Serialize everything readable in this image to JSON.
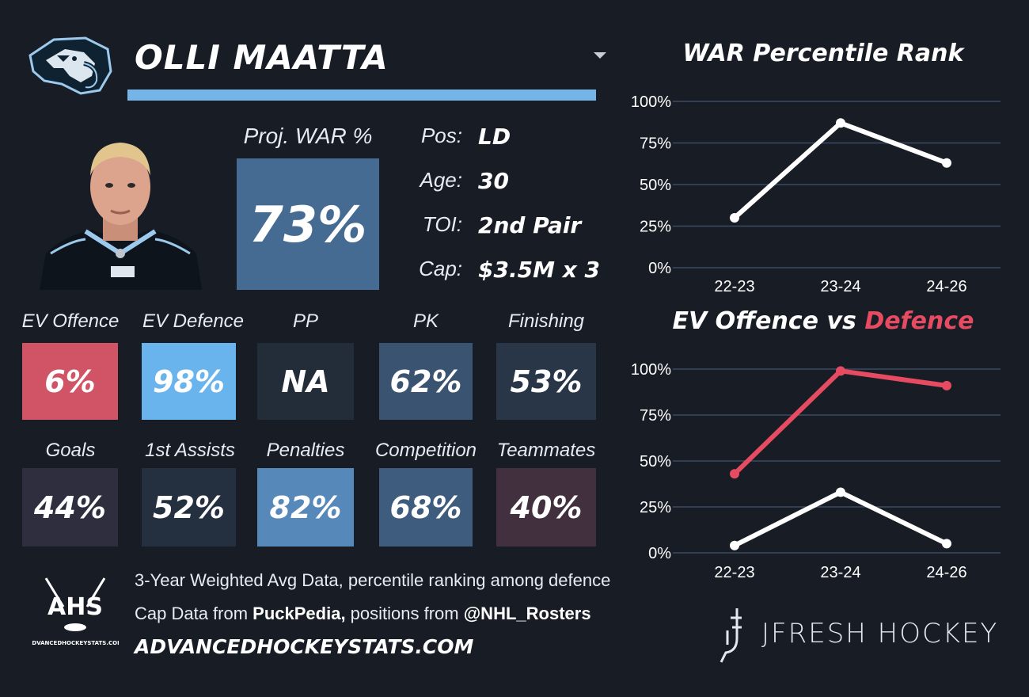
{
  "player": {
    "name": "OLLI MAATTA"
  },
  "projected_war": {
    "label": "Proj. WAR %",
    "value": "73%"
  },
  "info": [
    {
      "label": "Pos:",
      "value": "LD"
    },
    {
      "label": "Age:",
      "value": "30"
    },
    {
      "label": "TOI:",
      "value": "2nd Pair"
    },
    {
      "label": "Cap:",
      "value": "$3.5M x 3"
    }
  ],
  "tiles_row1": [
    {
      "label": "EV Offence",
      "value": "6%",
      "color": "#d05466"
    },
    {
      "label": "EV Defence",
      "value": "98%",
      "color": "#6ab4ee"
    },
    {
      "label": "PP",
      "value": "NA",
      "color": "#232c39"
    },
    {
      "label": "PK",
      "value": "62%",
      "color": "#3a5371"
    },
    {
      "label": "Finishing",
      "value": "53%",
      "color": "#283647"
    }
  ],
  "tiles_row2": [
    {
      "label": "Goals",
      "value": "44%",
      "color": "#2f2e3f"
    },
    {
      "label": "1st Assists",
      "value": "52%",
      "color": "#24303f"
    },
    {
      "label": "Penalties",
      "value": "82%",
      "color": "#5688ba"
    },
    {
      "label": "Competition",
      "value": "68%",
      "color": "#3e5c7e"
    },
    {
      "label": "Teammates",
      "value": "40%",
      "color": "#43303f"
    }
  ],
  "footer": {
    "ahs_logo_text": "AHS",
    "ahs_logo_subtext": "ADVANCEDHOCKEYSTATS.COM",
    "note_line1": "3-Year Weighted Avg Data, percentile ranking among defence",
    "note_line2_prefix": "Cap Data from ",
    "note_line2_source1": "PuckPedia,",
    "note_line2_middle": " positions from ",
    "note_line2_source2": "@NHL_Rosters",
    "site_url": "ADVANCEDHOCKEYSTATS.COM",
    "brand": "JFRESH HOCKEY"
  },
  "colors": {
    "background": "#171c25",
    "accent_blue": "#74b4e6",
    "defence_red": "#e64b62",
    "line_white": "#ffffff",
    "gridline": "#3b4b63"
  },
  "chart_data": [
    {
      "type": "line",
      "title": "WAR Percentile Rank",
      "categories": [
        "22-23",
        "23-24",
        "24-26"
      ],
      "series": [
        {
          "values": [
            30,
            87,
            63
          ],
          "color": "#ffffff"
        }
      ],
      "ylim": [
        0,
        100
      ],
      "yticks": [
        "0%",
        "25%",
        "50%",
        "75%",
        "100%"
      ],
      "grid": true
    },
    {
      "type": "line",
      "title": "EV Offence vs Defence",
      "title_parts": {
        "a": "EV Offence vs ",
        "b": "Defence"
      },
      "categories": [
        "22-23",
        "23-24",
        "24-26"
      ],
      "series": [
        {
          "values": [
            4,
            33,
            5
          ],
          "color": "#ffffff"
        },
        {
          "values": [
            43,
            99,
            91
          ],
          "color": "#e64b62"
        }
      ],
      "ylim": [
        0,
        100
      ],
      "yticks": [
        "0%",
        "25%",
        "50%",
        "75%",
        "100%"
      ],
      "grid": true
    }
  ]
}
